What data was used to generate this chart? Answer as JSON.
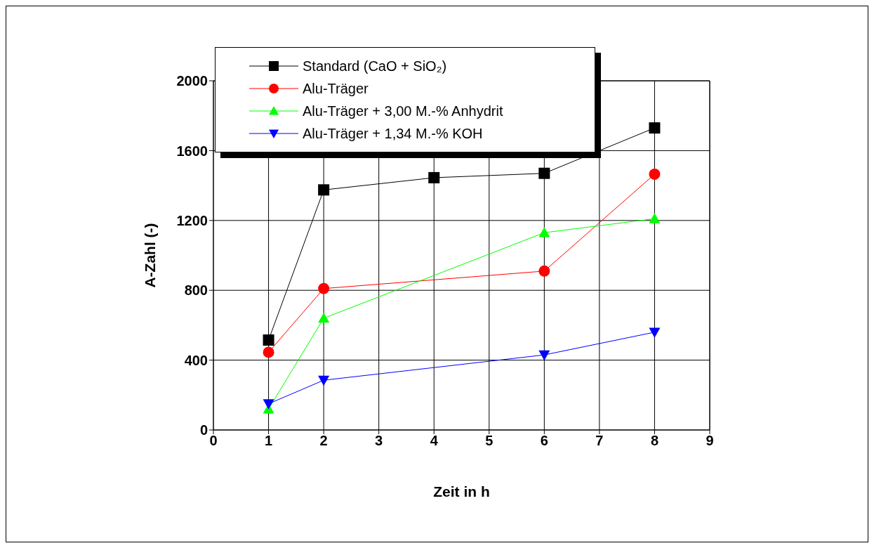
{
  "chart_data": {
    "type": "line",
    "xlabel": "Zeit in h",
    "ylabel": "A-Zahl (-)",
    "xlim": [
      0,
      9
    ],
    "xticks": [
      0,
      1,
      2,
      3,
      4,
      5,
      6,
      7,
      8,
      9
    ],
    "ylim": [
      0,
      2000
    ],
    "yticks": [
      0,
      400,
      800,
      1200,
      1600,
      2000
    ],
    "grid": true,
    "legend": "top left",
    "series": [
      {
        "name": "Standard (CaO + SiO₂)",
        "color": "#000000",
        "marker": "square",
        "x": [
          1,
          2,
          4,
          6,
          8
        ],
        "values": [
          515,
          1375,
          1445,
          1470,
          1730
        ]
      },
      {
        "name": "Alu-Träger",
        "color": "#ff0000",
        "marker": "circle",
        "x": [
          1,
          2,
          6,
          8
        ],
        "values": [
          445,
          810,
          910,
          1465
        ]
      },
      {
        "name": "Alu-Träger + 3,00 M.-% Anhydrit",
        "color": "#00ff00",
        "marker": "triangle",
        "x": [
          1,
          2,
          6,
          8
        ],
        "values": [
          120,
          640,
          1130,
          1210
        ]
      },
      {
        "name": "Alu-Träger + 1,34 M.-% KOH",
        "color": "#0000ff",
        "marker": "triangle-down",
        "x": [
          1,
          2,
          6,
          8
        ],
        "values": [
          150,
          285,
          430,
          560
        ]
      }
    ]
  }
}
